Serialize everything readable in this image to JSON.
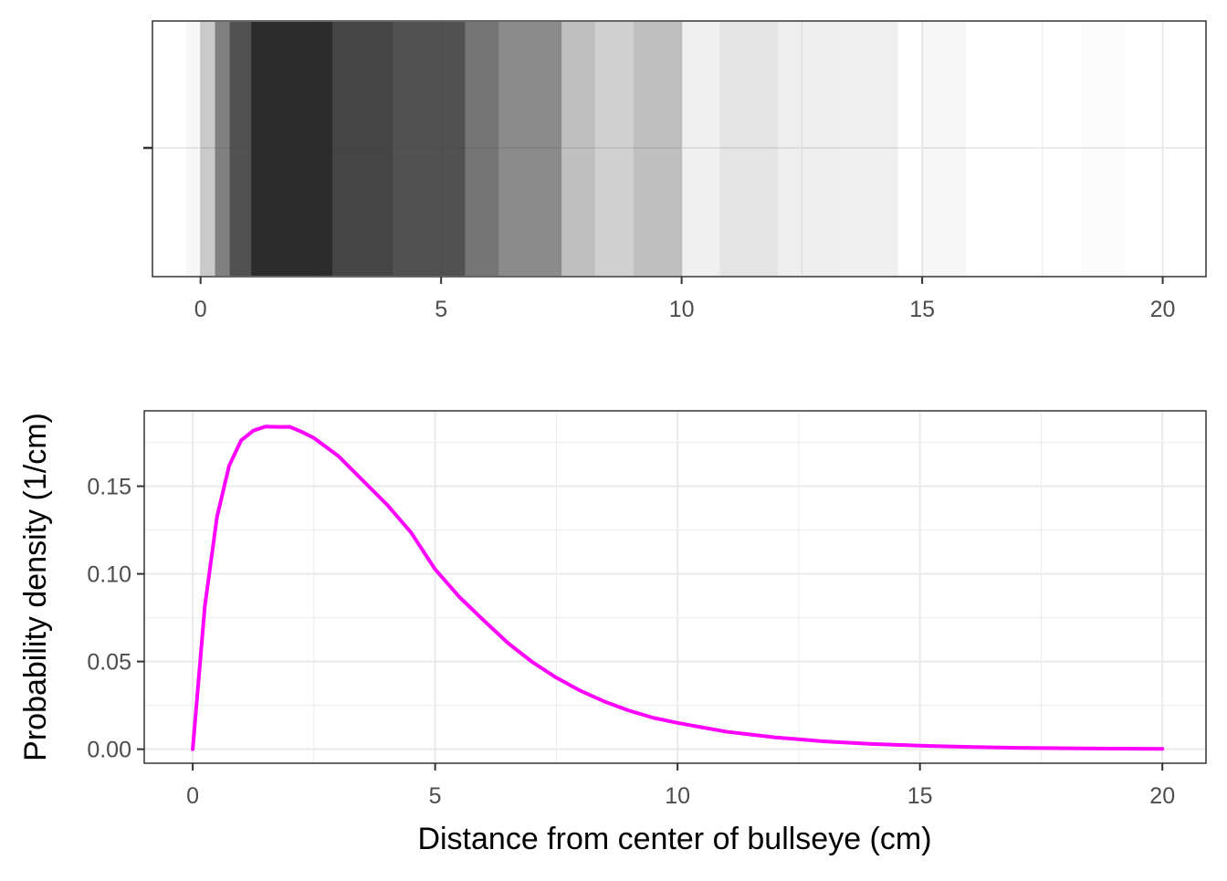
{
  "chart_data": [
    {
      "type": "strip",
      "description_role": "top panel: stacked translucent vertical lines showing sampled distances",
      "xlim": [
        -1,
        20.9
      ],
      "x_ticks": [
        0,
        5,
        10,
        15,
        20
      ],
      "x_tick_labels": [
        "0",
        "5",
        "10",
        "15",
        "20"
      ],
      "y_ticks": [
        ""
      ],
      "grid": true,
      "line_color": "#2b2b2b",
      "segments": [
        {
          "x0": -0.3,
          "x1": 0.0,
          "density": 0.04
        },
        {
          "x0": 0.0,
          "x1": 0.3,
          "density": 0.25
        },
        {
          "x0": 0.3,
          "x1": 0.6,
          "density": 0.6
        },
        {
          "x0": 0.6,
          "x1": 1.05,
          "density": 0.82
        },
        {
          "x0": 1.05,
          "x1": 2.75,
          "density": 1.0
        },
        {
          "x0": 2.75,
          "x1": 4.0,
          "density": 0.88
        },
        {
          "x0": 4.0,
          "x1": 5.5,
          "density": 0.82
        },
        {
          "x0": 5.5,
          "x1": 6.2,
          "density": 0.65
        },
        {
          "x0": 6.2,
          "x1": 7.5,
          "density": 0.55
        },
        {
          "x0": 7.5,
          "x1": 8.2,
          "density": 0.3
        },
        {
          "x0": 8.2,
          "x1": 9.0,
          "density": 0.22
        },
        {
          "x0": 9.0,
          "x1": 10.0,
          "density": 0.3
        },
        {
          "x0": 10.0,
          "x1": 10.8,
          "density": 0.07
        },
        {
          "x0": 10.8,
          "x1": 12.0,
          "density": 0.13
        },
        {
          "x0": 12.0,
          "x1": 13.3,
          "density": 0.08
        },
        {
          "x0": 13.3,
          "x1": 14.5,
          "density": 0.07
        },
        {
          "x0": 15.0,
          "x1": 15.9,
          "density": 0.04
        },
        {
          "x0": 18.3,
          "x1": 19.2,
          "density": 0.02
        }
      ]
    },
    {
      "type": "line",
      "description_role": "bottom panel: probability density curve",
      "xlabel": "Distance from center of bullseye (cm)",
      "ylabel": "Probability density (1/cm)",
      "xlim": [
        -1,
        20.9
      ],
      "ylim": [
        -0.008,
        0.193
      ],
      "x_ticks": [
        0,
        5,
        10,
        15,
        20
      ],
      "x_tick_labels": [
        "0",
        "5",
        "10",
        "15",
        "20"
      ],
      "y_ticks": [
        0,
        0.05,
        0.1,
        0.15
      ],
      "y_tick_labels": [
        "0.00",
        "0.05",
        "0.10",
        "0.15"
      ],
      "grid": true,
      "series": [
        {
          "color": "#ff00ff",
          "x": [
            0,
            0.25,
            0.5,
            0.75,
            1,
            1.25,
            1.5,
            1.75,
            2,
            2.25,
            2.5,
            3,
            3.5,
            4,
            4.5,
            5,
            5.5,
            6,
            6.5,
            7,
            7.5,
            8,
            8.5,
            9,
            9.5,
            10,
            11,
            12,
            13,
            14,
            15,
            16,
            17,
            18,
            19,
            20
          ],
          "y": [
            0,
            0.0816,
            0.1324,
            0.1616,
            0.1762,
            0.1817,
            0.184,
            0.1838,
            0.1839,
            0.181,
            0.1775,
            0.1673,
            0.1535,
            0.1397,
            0.1237,
            0.1026,
            0.0868,
            0.0735,
            0.0606,
            0.0498,
            0.0408,
            0.0333,
            0.0271,
            0.022,
            0.0179,
            0.015,
            0.01,
            0.0068,
            0.0045,
            0.003,
            0.002,
            0.0013,
            0.0008,
            0.0005,
            0.0003,
            0.0002
          ]
        }
      ]
    }
  ]
}
